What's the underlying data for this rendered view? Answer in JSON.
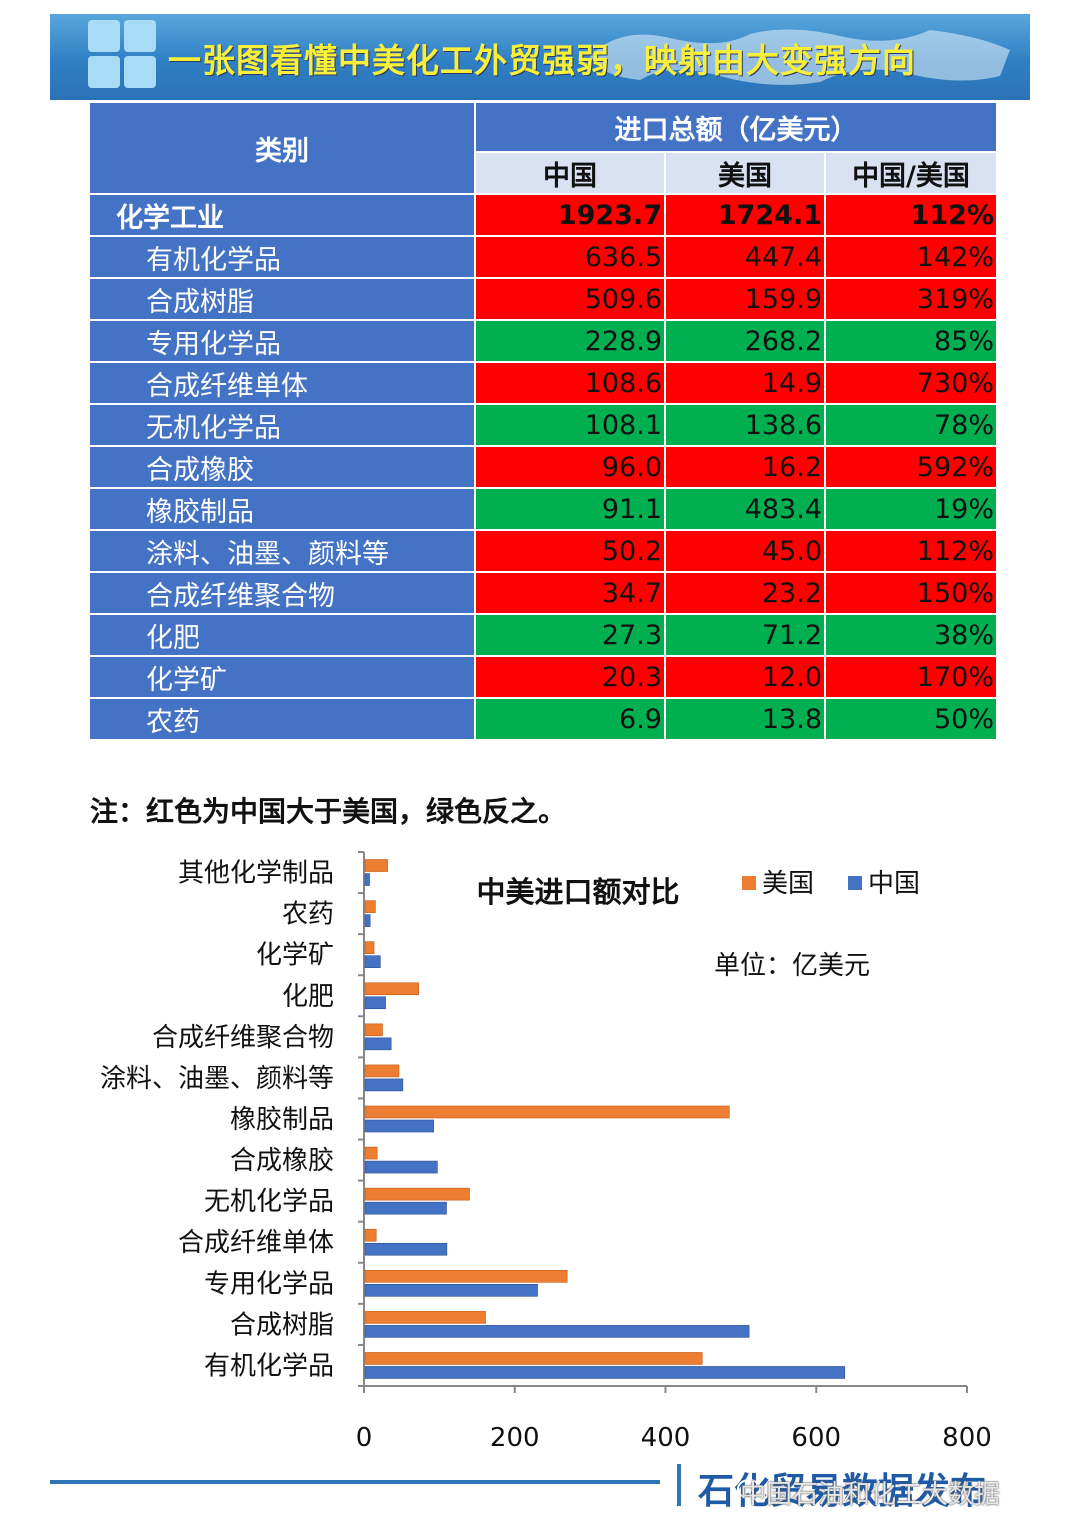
{
  "header": {
    "title": "一张图看懂中美化工外贸强弱，映射由大变强方向"
  },
  "table": {
    "category_header": "类别",
    "group_header": "进口总额（亿美元）",
    "sub_headers": [
      "中国",
      "美国",
      "中国/美国"
    ],
    "rows": [
      {
        "category": "化学工业",
        "china": "1923.7",
        "usa": "1724.1",
        "ratio": "112%",
        "color": "#ff0000",
        "total": true
      },
      {
        "category": "有机化学品",
        "china": "636.5",
        "usa": "447.4",
        "ratio": "142%",
        "color": "#ff0000"
      },
      {
        "category": "合成树脂",
        "china": "509.6",
        "usa": "159.9",
        "ratio": "319%",
        "color": "#ff0000"
      },
      {
        "category": "专用化学品",
        "china": "228.9",
        "usa": "268.2",
        "ratio": "85%",
        "color": "#00b050"
      },
      {
        "category": "合成纤维单体",
        "china": "108.6",
        "usa": "14.9",
        "ratio": "730%",
        "color": "#ff0000"
      },
      {
        "category": "无机化学品",
        "china": "108.1",
        "usa": "138.6",
        "ratio": "78%",
        "color": "#00b050"
      },
      {
        "category": "合成橡胶",
        "china": "96.0",
        "usa": "16.2",
        "ratio": "592%",
        "color": "#ff0000"
      },
      {
        "category": "橡胶制品",
        "china": "91.1",
        "usa": "483.4",
        "ratio": "19%",
        "color": "#00b050"
      },
      {
        "category": "涂料、油墨、颜料等",
        "china": "50.2",
        "usa": "45.0",
        "ratio": "112%",
        "color": "#ff0000"
      },
      {
        "category": "合成纤维聚合物",
        "china": "34.7",
        "usa": "23.2",
        "ratio": "150%",
        "color": "#ff0000"
      },
      {
        "category": "化肥",
        "china": "27.3",
        "usa": "71.2",
        "ratio": "38%",
        "color": "#00b050"
      },
      {
        "category": "化学矿",
        "china": "20.3",
        "usa": "12.0",
        "ratio": "170%",
        "color": "#ff0000"
      },
      {
        "category": "农药",
        "china": "6.9",
        "usa": "13.8",
        "ratio": "50%",
        "color": "#00b050"
      }
    ]
  },
  "note": "注：红色为中国大于美国，绿色反之。",
  "chart_data": {
    "type": "bar",
    "orientation": "horizontal",
    "title": "中美进口额对比",
    "unit_label": "单位：亿美元",
    "categories": [
      "有机化学品",
      "合成树脂",
      "专用化学品",
      "合成纤维单体",
      "无机化学品",
      "合成橡胶",
      "橡胶制品",
      "涂料、油墨、颜料等",
      "合成纤维聚合物",
      "化肥",
      "化学矿",
      "农药",
      "其他化学制品"
    ],
    "series": [
      {
        "name": "美国",
        "color": "#ed7d31",
        "values": [
          447.4,
          159.9,
          268.2,
          14.9,
          138.6,
          16.2,
          483.4,
          45.0,
          23.2,
          71.2,
          12.0,
          13.8,
          30
        ]
      },
      {
        "name": "中国",
        "color": "#4472c4",
        "values": [
          636.5,
          509.6,
          228.9,
          108.6,
          108.1,
          96.0,
          91.1,
          50.2,
          34.7,
          27.3,
          20.3,
          6.9,
          6
        ]
      }
    ],
    "xlim": [
      0,
      800
    ],
    "xticks": [
      "0",
      "200",
      "400",
      "600",
      "800"
    ],
    "legend_position": "top-right",
    "grid": false
  },
  "footer": {
    "brand": "石化贸易数据发布",
    "watermark": "中国石油和化工大数据"
  }
}
